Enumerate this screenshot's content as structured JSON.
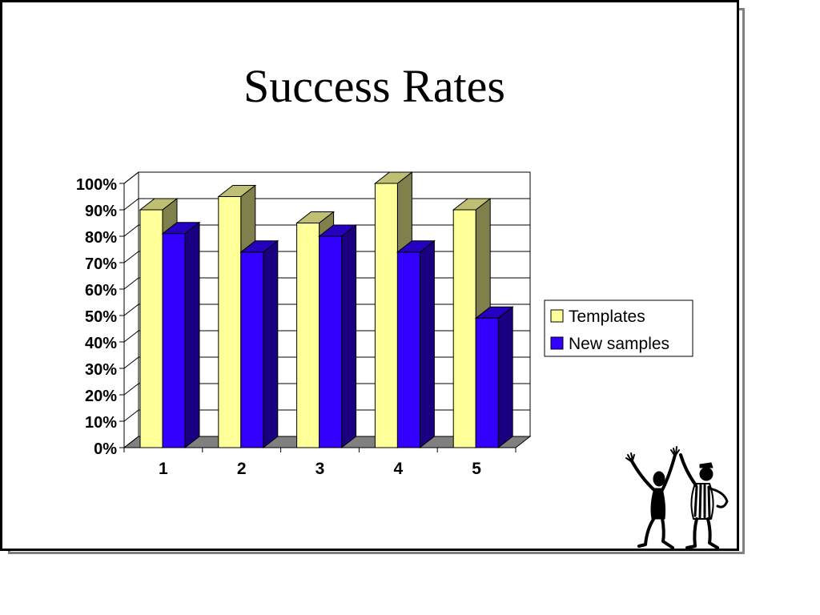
{
  "slide": {
    "title": "Success Rates"
  },
  "chart_data": {
    "type": "bar",
    "title": "Success Rates",
    "categories": [
      "1",
      "2",
      "3",
      "4",
      "5"
    ],
    "series": [
      {
        "name": "Templates",
        "values": [
          90,
          95,
          85,
          100,
          90
        ],
        "color": "#ffff99"
      },
      {
        "name": "New samples",
        "values": [
          81,
          74,
          80,
          74,
          49
        ],
        "color": "#3300ff"
      }
    ],
    "ylim": [
      0,
      100
    ],
    "yticks": [
      "0%",
      "10%",
      "20%",
      "30%",
      "40%",
      "50%",
      "60%",
      "70%",
      "80%",
      "90%",
      "100%"
    ],
    "grid": true,
    "legend": "right",
    "style": "3d-clustered-column"
  },
  "clipart": {
    "icon": "celebrating-figures-icon"
  }
}
